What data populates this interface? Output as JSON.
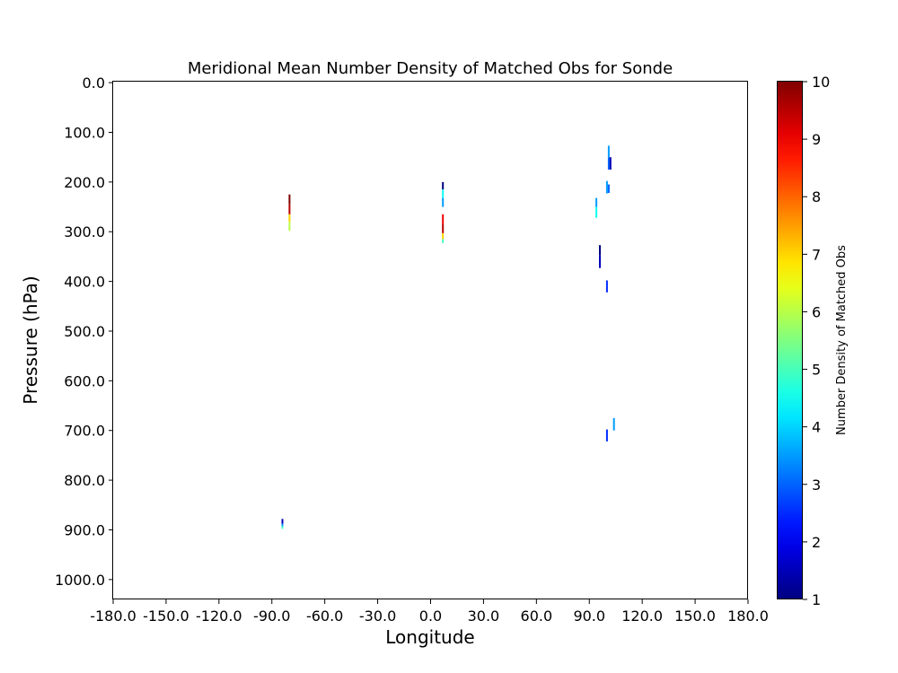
{
  "chart_data": {
    "type": "heatmap",
    "title": "Meridional Mean Number Density of Matched Obs for Sonde",
    "xlabel": "Longitude",
    "ylabel": "Pressure (hPa)",
    "xlim": [
      -180,
      180
    ],
    "ylim": [
      1040,
      -2
    ],
    "y_inverted": true,
    "xticks": [
      -180,
      -150,
      -120,
      -90,
      -60,
      -30,
      0,
      30,
      60,
      90,
      120,
      150,
      180
    ],
    "xtick_labels": [
      "-180.0",
      "-150.0",
      "-120.0",
      "-90.0",
      "-60.0",
      "-30.0",
      "0.0",
      "30.0",
      "60.0",
      "90.0",
      "120.0",
      "150.0",
      "180.0"
    ],
    "yticks": [
      0,
      100,
      200,
      300,
      400,
      500,
      600,
      700,
      800,
      900,
      1000
    ],
    "ytick_labels": [
      "0.0",
      "100.0",
      "200.0",
      "300.0",
      "400.0",
      "500.0",
      "600.0",
      "700.0",
      "800.0",
      "900.0",
      "1000.0"
    ],
    "grid": false,
    "colormap": "jet",
    "colorbar": {
      "label": "Number Density of Matched Obs",
      "min": 1,
      "max": 10,
      "ticks": [
        1,
        2,
        3,
        4,
        5,
        6,
        7,
        8,
        9,
        10
      ],
      "tick_labels": [
        "1",
        "2",
        "3",
        "4",
        "5",
        "6",
        "7",
        "8",
        "9",
        "10"
      ]
    },
    "cells": [
      {
        "lon": -80,
        "p0": 225,
        "p1": 245,
        "value": 10
      },
      {
        "lon": -80,
        "p0": 245,
        "p1": 265,
        "value": 9.5
      },
      {
        "lon": -80,
        "p0": 265,
        "p1": 280,
        "value": 7
      },
      {
        "lon": -80,
        "p0": 280,
        "p1": 298,
        "value": 6
      },
      {
        "lon": 7,
        "p0": 200,
        "p1": 215,
        "value": 1
      },
      {
        "lon": 7,
        "p0": 215,
        "p1": 232,
        "value": 4.5
      },
      {
        "lon": 7,
        "p0": 232,
        "p1": 250,
        "value": 3.5
      },
      {
        "lon": 7,
        "p0": 265,
        "p1": 285,
        "value": 9
      },
      {
        "lon": 7,
        "p0": 285,
        "p1": 303,
        "value": 9.5
      },
      {
        "lon": 7,
        "p0": 303,
        "p1": 315,
        "value": 7
      },
      {
        "lon": 7,
        "p0": 315,
        "p1": 323,
        "value": 5
      },
      {
        "lon": -84,
        "p0": 878,
        "p1": 888,
        "value": 1.5
      },
      {
        "lon": -84,
        "p0": 888,
        "p1": 893,
        "value": 3.5
      },
      {
        "lon": -84,
        "p0": 893,
        "p1": 898,
        "value": 5
      },
      {
        "lon": 94,
        "p0": 232,
        "p1": 250,
        "value": 3.5
      },
      {
        "lon": 94,
        "p0": 250,
        "p1": 272,
        "value": 4.5
      },
      {
        "lon": 96,
        "p0": 327,
        "p1": 347,
        "value": 1
      },
      {
        "lon": 96,
        "p0": 347,
        "p1": 373,
        "value": 1.5
      },
      {
        "lon": 100,
        "p0": 198,
        "p1": 223,
        "value": 3.5
      },
      {
        "lon": 101,
        "p0": 127,
        "p1": 150,
        "value": 3.5
      },
      {
        "lon": 101,
        "p0": 150,
        "p1": 175,
        "value": 3
      },
      {
        "lon": 102,
        "p0": 150,
        "p1": 175,
        "value": 1.5
      },
      {
        "lon": 101,
        "p0": 205,
        "p1": 222,
        "value": 3
      },
      {
        "lon": 100,
        "p0": 398,
        "p1": 422,
        "value": 2.5
      },
      {
        "lon": 104,
        "p0": 675,
        "p1": 700,
        "value": 3.5
      },
      {
        "lon": 100,
        "p0": 698,
        "p1": 722,
        "value": 2.5
      }
    ]
  }
}
